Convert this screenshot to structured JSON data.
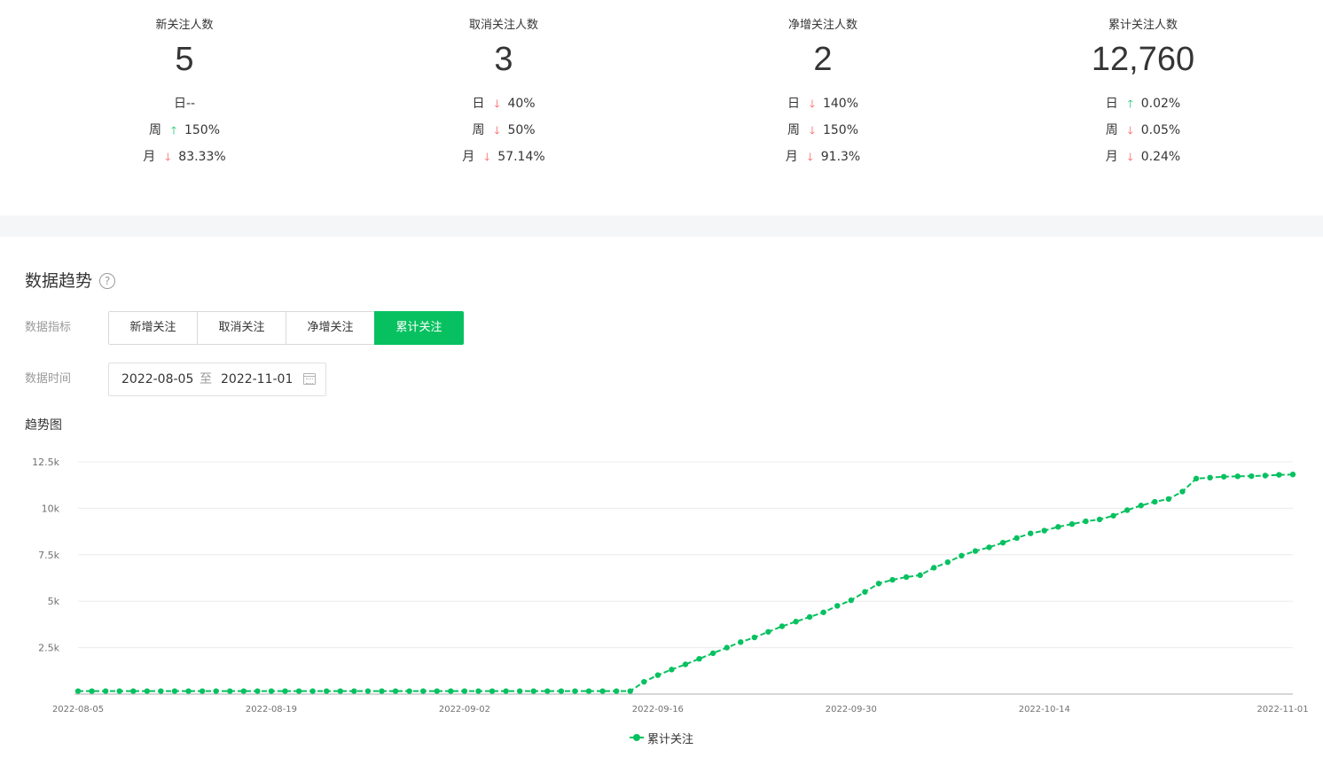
{
  "stats": [
    {
      "title": "新关注人数",
      "value": "5",
      "rows": [
        {
          "period": "日",
          "direction": "none",
          "change": "--"
        },
        {
          "period": "周",
          "direction": "up",
          "change": "150%"
        },
        {
          "period": "月",
          "direction": "down",
          "change": "83.33%"
        }
      ]
    },
    {
      "title": "取消关注人数",
      "value": "3",
      "rows": [
        {
          "period": "日",
          "direction": "down",
          "change": "40%"
        },
        {
          "period": "周",
          "direction": "down",
          "change": "50%"
        },
        {
          "period": "月",
          "direction": "down",
          "change": "57.14%"
        }
      ]
    },
    {
      "title": "净增关注人数",
      "value": "2",
      "rows": [
        {
          "period": "日",
          "direction": "down",
          "change": "140%"
        },
        {
          "period": "周",
          "direction": "down",
          "change": "150%"
        },
        {
          "period": "月",
          "direction": "down",
          "change": "91.3%"
        }
      ]
    },
    {
      "title": "累计关注人数",
      "value": "12,760",
      "rows": [
        {
          "period": "日",
          "direction": "up",
          "change": "0.02%"
        },
        {
          "period": "周",
          "direction": "down",
          "change": "0.05%"
        },
        {
          "period": "月",
          "direction": "down",
          "change": "0.24%"
        }
      ]
    }
  ],
  "colors": {
    "up": "#07c160",
    "down": "#fa5151",
    "accent": "#07c160"
  },
  "trend": {
    "section_title": "数据趋势",
    "help_icon": "question-circle-icon",
    "metric_label": "数据指标",
    "metrics": [
      {
        "label": "新增关注",
        "active": false
      },
      {
        "label": "取消关注",
        "active": false
      },
      {
        "label": "净增关注",
        "active": false
      },
      {
        "label": "累计关注",
        "active": true
      }
    ],
    "time_label": "数据时间",
    "date_start": "2022-08-05",
    "date_separator": "至",
    "date_end": "2022-11-01",
    "calendar_icon": "calendar-icon",
    "chart_title": "趋势图"
  },
  "chart_data": {
    "type": "line",
    "title": "",
    "xlabel": "",
    "ylabel": "",
    "ylim": [
      0,
      12500
    ],
    "y_ticks": [
      2500,
      5000,
      7500,
      10000,
      12500
    ],
    "y_tick_labels": [
      "2.5k",
      "5k",
      "7.5k",
      "10k",
      "12.5k"
    ],
    "x_tick_labels": [
      "2022-08-05",
      "2022-08-19",
      "2022-09-02",
      "2022-09-16",
      "2022-09-30",
      "2022-10-14",
      "2022-11-01"
    ],
    "x_tick_index": [
      0,
      14,
      28,
      42,
      56,
      70,
      89
    ],
    "grid": true,
    "legend": "bottom-center",
    "series": [
      {
        "name": "累计关注",
        "values": [
          160,
          160,
          160,
          160,
          160,
          160,
          160,
          160,
          160,
          160,
          160,
          160,
          160,
          160,
          160,
          160,
          160,
          160,
          160,
          160,
          160,
          160,
          160,
          160,
          160,
          160,
          160,
          160,
          160,
          160,
          160,
          160,
          160,
          160,
          160,
          160,
          160,
          160,
          160,
          160,
          160,
          660,
          1020,
          1320,
          1600,
          1900,
          2200,
          2500,
          2800,
          3050,
          3350,
          3650,
          3900,
          4150,
          4400,
          4750,
          5050,
          5500,
          5950,
          6150,
          6300,
          6400,
          6800,
          7100,
          7450,
          7700,
          7900,
          8150,
          8400,
          8650,
          8800,
          9000,
          9150,
          9300,
          9400,
          9600,
          9900,
          10150,
          10350,
          10500,
          10900,
          11600,
          11650,
          11700,
          11720,
          11730,
          11760,
          11800,
          11820
        ]
      }
    ]
  }
}
